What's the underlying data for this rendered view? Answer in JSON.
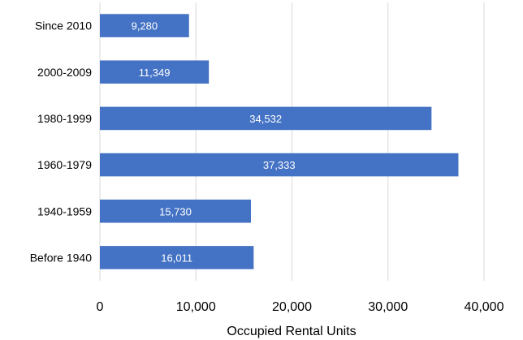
{
  "chart_data": {
    "type": "bar",
    "orientation": "horizontal",
    "categories": [
      "Since 2010",
      "2000-2009",
      "1980-1999",
      "1960-1979",
      "1940-1959",
      "Before 1940"
    ],
    "values": [
      9280,
      11349,
      34532,
      37333,
      15730,
      16011
    ],
    "data_labels": [
      "9,280",
      "11,349",
      "34,532",
      "37,333",
      "15,730",
      "16,011"
    ],
    "xlabel": "Occupied Rental Units",
    "xlim": [
      0,
      40000
    ],
    "x_ticks": [
      0,
      10000,
      20000,
      30000,
      40000
    ],
    "x_tick_labels": [
      "0",
      "10,000",
      "20,000",
      "30,000",
      "40,000"
    ],
    "grid": "vertical",
    "bar_color": "#4472C4",
    "grid_color": "#d9d9d9"
  }
}
